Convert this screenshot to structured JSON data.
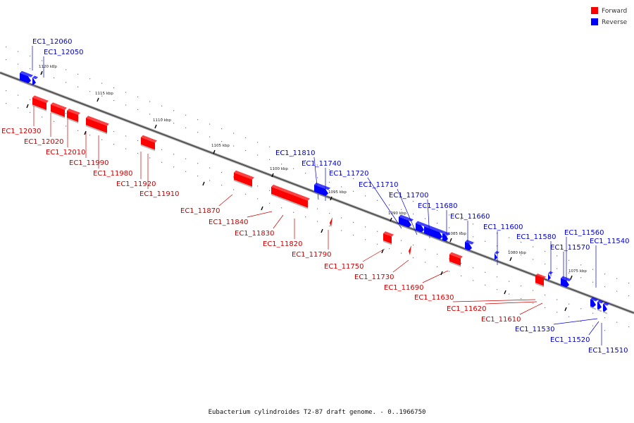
{
  "title": "Eubacterium cylindroides T2-87 draft genome. - 0..1966750",
  "legend": [
    {
      "label": "Forward",
      "color": "#ff0000"
    },
    {
      "label": "Reverse",
      "color": "#0000ff"
    }
  ],
  "colors": {
    "forward": "#ff0000",
    "reverse": "#0000ff",
    "forward_label": "#cc0000",
    "reverse_label": "#0000cc"
  },
  "ticks": [
    "1120 kbp",
    "1115 kbp",
    "1110 kbp",
    "1105 kbp",
    "1100 kbp",
    "1095 kbp",
    "1090 kbp",
    "1085 kbp",
    "1080 kbp",
    "1075 kbp"
  ],
  "genes_forward": [
    "EC1_12030",
    "EC1_12020",
    "EC1_12010",
    "EC1_11990",
    "EC1_11980",
    "EC1_11920",
    "EC1_11910",
    "EC1_11870",
    "EC1_11840",
    "EC1_11830",
    "EC1_11820",
    "EC1_11790",
    "EC1_11750",
    "EC1_11730",
    "EC1_11690",
    "EC1_11630",
    "EC1_11620",
    "EC1_11610"
  ],
  "genes_reverse": [
    "EC1_12060",
    "EC1_12050",
    "EC1_11810",
    "EC1_11740",
    "EC1_11720",
    "EC1_11710",
    "EC1_11700",
    "EC1_11680",
    "EC1_11660",
    "EC1_11600",
    "EC1_11580",
    "EC1_11570",
    "EC1_11560",
    "EC1_11540",
    "EC1_11530",
    "EC1_11520",
    "EC1_11510"
  ]
}
